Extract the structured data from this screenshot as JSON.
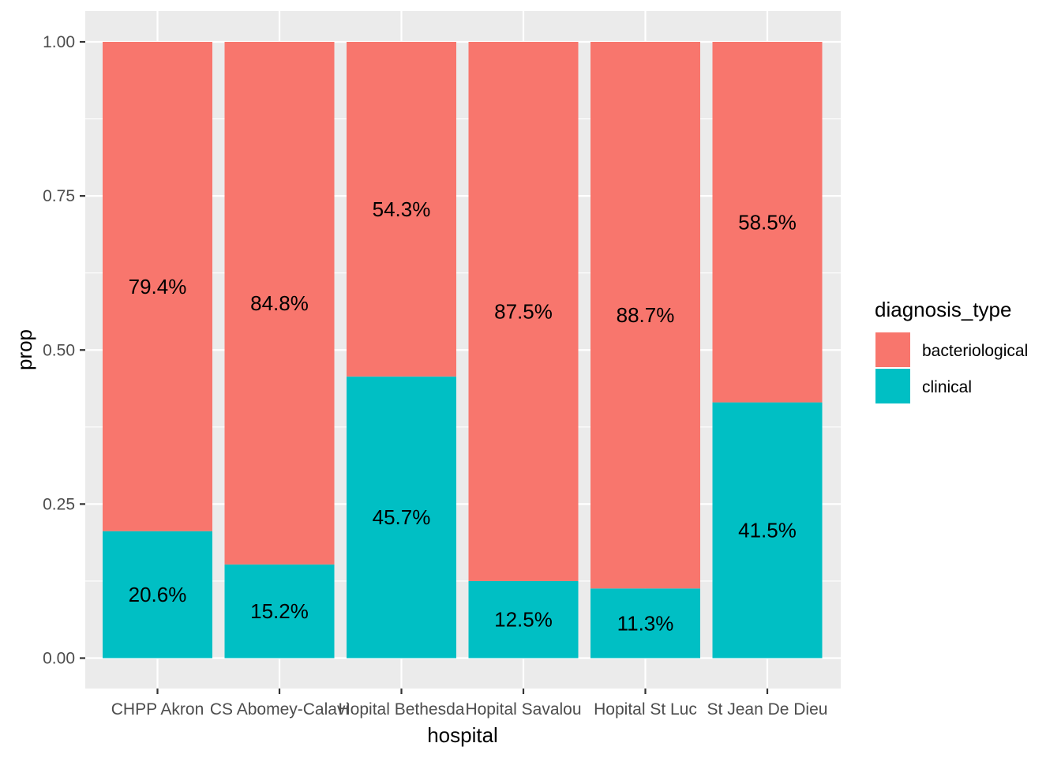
{
  "chart_data": {
    "type": "bar",
    "stacked": true,
    "categories": [
      "CHPP Akron",
      "CS Abomey-Calavi",
      "Hopital Bethesda",
      "Hopital Savalou",
      "Hopital St Luc",
      "St Jean De Dieu"
    ],
    "series": [
      {
        "name": "clinical",
        "color": "#00BFC4",
        "values": [
          0.206,
          0.152,
          0.457,
          0.125,
          0.113,
          0.415
        ],
        "labels": [
          "20.6%",
          "15.2%",
          "45.7%",
          "12.5%",
          "11.3%",
          "41.5%"
        ]
      },
      {
        "name": "bacteriological",
        "color": "#F8766D",
        "values": [
          0.794,
          0.848,
          0.543,
          0.875,
          0.887,
          0.585
        ],
        "labels": [
          "79.4%",
          "84.8%",
          "54.3%",
          "87.5%",
          "88.7%",
          "58.5%"
        ]
      }
    ],
    "xlabel": "hospital",
    "ylabel": "prop",
    "ylim": [
      0,
      1
    ],
    "yticks": [
      0,
      0.25,
      0.5,
      0.75,
      1
    ],
    "ytick_labels": [
      "0.00",
      "0.25",
      "0.50",
      "0.75",
      "1.00"
    ],
    "grid": true,
    "legend": {
      "title": "diagnosis_type",
      "position": "right",
      "entries": [
        "bacteriological",
        "clinical"
      ]
    }
  }
}
